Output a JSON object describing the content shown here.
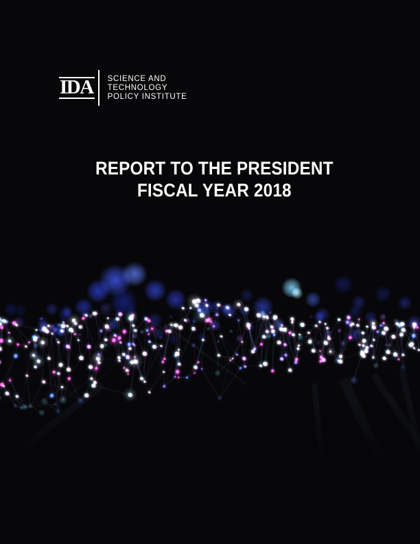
{
  "logo": {
    "acronym": "IDA",
    "org_lines": [
      "SCIENCE AND",
      "TECHNOLOGY",
      "POLICY INSTITUTE"
    ]
  },
  "title": {
    "line1": "REPORT TO THE PRESIDENT",
    "line2": "FISCAL YEAR 2018"
  },
  "artwork": {
    "type": "photo-illustration",
    "alt": "Abstract glowing network of cyan, blue and magenta particles connected by thin lines, with blue bokeh lights above and a fade to black below",
    "seed": 11,
    "colors": {
      "background": "#070709",
      "bokeh": [
        "#3d55e8",
        "#5d7bf2",
        "#2d3fd0",
        "#1e2a9e",
        "#3a4ad8",
        "#18206e",
        "#2a36b0",
        "#5a4fd0"
      ],
      "bokeh_bright_cyan": "#7fd0f5",
      "mid_dots": [
        "#7a6ae8",
        "#a06ae0",
        "#5a78f0",
        "#6ad0f0"
      ],
      "node_cyan": "#aef2ff",
      "node_white": "#eef6ff",
      "node_pink": "#f050c8",
      "node_violet": "#7a62f2",
      "node_blue": "#4a6cf4",
      "soft_trail": [
        "#4a70d8",
        "#3a5cc8",
        "#6ab8d8"
      ],
      "lines": [
        "#6e8cdc",
        "#a078dc",
        "#5ab4dc",
        "#c06ab4"
      ],
      "ray": "#78a0c8"
    }
  }
}
